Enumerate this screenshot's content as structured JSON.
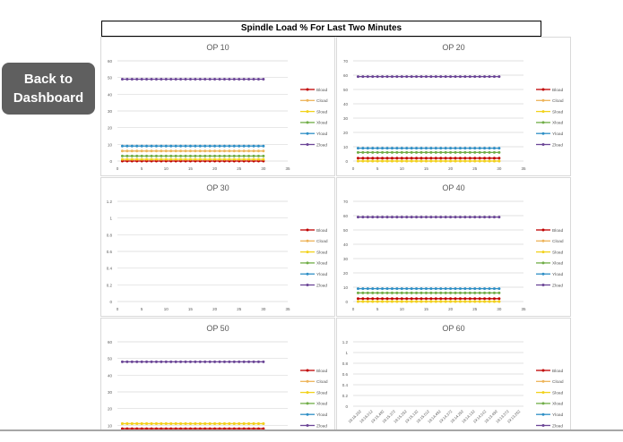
{
  "nav": {
    "back_label": "Back to Dashboard"
  },
  "header": {
    "title": "Spindle Load % For Last Two Minutes"
  },
  "legend_series": [
    "Bload",
    "Cload",
    "Sload",
    "Xload",
    "Yload",
    "Zload"
  ],
  "series_colors": {
    "Bload": "#c00000",
    "Cload": "#eeb45a",
    "Sload": "#f2d21b",
    "Xload": "#70ad47",
    "Yload": "#2e8fc6",
    "Zload": "#6b4596"
  },
  "chart_data": [
    {
      "type": "line",
      "title": "OP 10",
      "xlim": [
        0,
        35
      ],
      "xticks": [
        0,
        5,
        10,
        15,
        20,
        25,
        30,
        35
      ],
      "ylim": [
        0,
        60
      ],
      "yticks": [
        0,
        10,
        20,
        30,
        40,
        50,
        60
      ],
      "x": [
        1,
        30
      ],
      "grid": true,
      "legend": "right",
      "series": [
        {
          "name": "Bload",
          "value": 0
        },
        {
          "name": "Cload",
          "value": 6
        },
        {
          "name": "Sload",
          "value": 1
        },
        {
          "name": "Xload",
          "value": 3
        },
        {
          "name": "Yload",
          "value": 9
        },
        {
          "name": "Zload",
          "value": 49
        }
      ]
    },
    {
      "type": "line",
      "title": "OP 20",
      "xlim": [
        0,
        35
      ],
      "xticks": [
        0,
        5,
        10,
        15,
        20,
        25,
        30,
        35
      ],
      "ylim": [
        0,
        70
      ],
      "yticks": [
        0,
        10,
        20,
        30,
        40,
        50,
        60,
        70
      ],
      "x": [
        1,
        30
      ],
      "grid": true,
      "legend": "right",
      "series": [
        {
          "name": "Bload",
          "value": 2
        },
        {
          "name": "Cload",
          "value": 0
        },
        {
          "name": "Sload",
          "value": 0
        },
        {
          "name": "Xload",
          "value": 6
        },
        {
          "name": "Yload",
          "value": 9
        },
        {
          "name": "Zload",
          "value": 59
        }
      ]
    },
    {
      "type": "line",
      "title": "OP 30",
      "xlim": [
        0,
        35
      ],
      "xticks": [
        0,
        5,
        10,
        15,
        20,
        25,
        30,
        35
      ],
      "ylim": [
        0,
        1.2
      ],
      "yticks": [
        0,
        0.2,
        0.4,
        0.6,
        0.8,
        1,
        1.2
      ],
      "x": [
        1,
        30
      ],
      "grid": true,
      "legend": "right",
      "series": [
        {
          "name": "Bload",
          "value": null
        },
        {
          "name": "Cload",
          "value": null
        },
        {
          "name": "Sload",
          "value": null
        },
        {
          "name": "Xload",
          "value": null
        },
        {
          "name": "Yload",
          "value": null
        },
        {
          "name": "Zload",
          "value": null
        }
      ]
    },
    {
      "type": "line",
      "title": "OP 40",
      "xlim": [
        0,
        35
      ],
      "xticks": [
        0,
        5,
        10,
        15,
        20,
        25,
        30,
        35
      ],
      "ylim": [
        0,
        70
      ],
      "yticks": [
        0,
        10,
        20,
        30,
        40,
        50,
        60,
        70
      ],
      "x": [
        1,
        30
      ],
      "grid": true,
      "legend": "right",
      "series": [
        {
          "name": "Bload",
          "value": 2
        },
        {
          "name": "Cload",
          "value": 0
        },
        {
          "name": "Sload",
          "value": 0
        },
        {
          "name": "Xload",
          "value": 6
        },
        {
          "name": "Yload",
          "value": 9
        },
        {
          "name": "Zload",
          "value": 59
        }
      ]
    },
    {
      "type": "line",
      "title": "OP 50",
      "xlim": [
        0,
        35
      ],
      "xticks": [
        0,
        5,
        10,
        15,
        20,
        25,
        30,
        35
      ],
      "ylim": [
        0,
        60
      ],
      "yticks": [
        0,
        10,
        20,
        30,
        40,
        50,
        60
      ],
      "x": [
        1,
        30
      ],
      "grid": true,
      "legend": "right",
      "series": [
        {
          "name": "Bload",
          "value": 8
        },
        {
          "name": "Cload",
          "value": 11
        },
        {
          "name": "Sload",
          "value": 11
        },
        {
          "name": "Xload",
          "value": null
        },
        {
          "name": "Yload",
          "value": null
        },
        {
          "name": "Zload",
          "value": 48
        }
      ]
    },
    {
      "type": "line",
      "title": "OP 60",
      "ylim": [
        0,
        1.2
      ],
      "yticks": [
        0,
        0.2,
        0.4,
        0.6,
        0.8,
        1,
        1.2
      ],
      "grid": true,
      "legend": "right",
      "categories": [
        "19:16.232",
        "19:16.012",
        "19:15.492",
        "19:15.372",
        "19:15.252",
        "19:15.132",
        "19:15.012",
        "19:14.492",
        "19:14.372",
        "19:14.252",
        "19:14.132",
        "19:14.012",
        "19:13.492",
        "19:13.372",
        "19:13.252"
      ],
      "series": [
        {
          "name": "Bload",
          "value": null
        },
        {
          "name": "Cload",
          "value": null
        },
        {
          "name": "Sload",
          "value": null
        },
        {
          "name": "Xload",
          "value": null
        },
        {
          "name": "Yload",
          "value": null
        },
        {
          "name": "Zload",
          "value": null
        }
      ]
    }
  ]
}
